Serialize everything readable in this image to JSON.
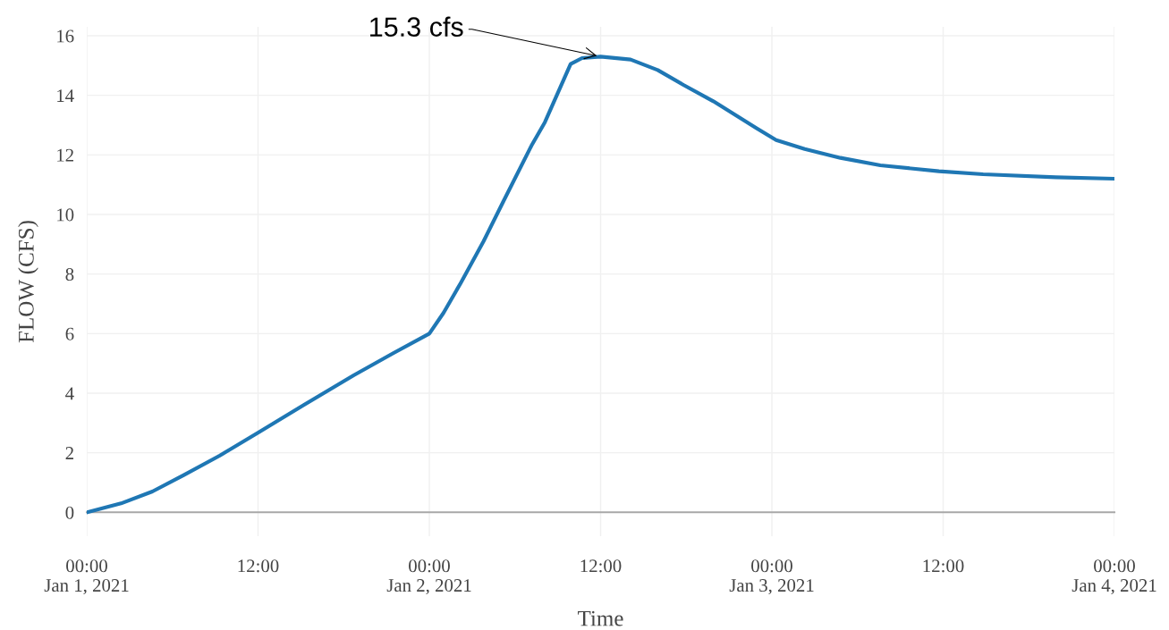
{
  "chart_data": {
    "type": "line",
    "xlabel": "Time",
    "ylabel": "FLOW (CFS)",
    "x": [
      "2021-01-01T00:00",
      "2021-01-01T02:24",
      "2021-01-01T04:36",
      "2021-01-01T06:48",
      "2021-01-01T09:18",
      "2021-01-01T12:06",
      "2021-01-01T15:12",
      "2021-01-01T18:42",
      "2021-01-01T21:30",
      "2021-01-02T00:00",
      "2021-01-02T01:00",
      "2021-01-02T02:12",
      "2021-01-02T03:48",
      "2021-01-02T05:12",
      "2021-01-02T07:12",
      "2021-01-02T08:06",
      "2021-01-02T09:54",
      "2021-01-02T10:42",
      "2021-01-02T12:00",
      "2021-01-02T14:06",
      "2021-01-02T16:00",
      "2021-01-02T17:48",
      "2021-01-02T19:54",
      "2021-01-02T22:54",
      "2021-01-03T00:18",
      "2021-01-03T02:18",
      "2021-01-03T04:48",
      "2021-01-03T07:36",
      "2021-01-03T11:42",
      "2021-01-03T14:48",
      "2021-01-03T19:54",
      "2021-01-04T00:00"
    ],
    "series": [
      {
        "color": "#1f77b4",
        "values": [
          0,
          0.3,
          0.7,
          1.25,
          1.9,
          2.7,
          3.6,
          4.6,
          5.35,
          6.0,
          6.7,
          7.7,
          9.1,
          10.45,
          12.35,
          13.1,
          15.05,
          15.25,
          15.3,
          15.2,
          14.85,
          14.35,
          13.8,
          12.9,
          12.5,
          12.2,
          11.9,
          11.65,
          11.45,
          11.35,
          11.25,
          11.2
        ]
      }
    ],
    "xlim": [
      "2021-01-01T00:00",
      "2021-01-04T00:00"
    ],
    "xticks": [
      {
        "value": "2021-01-01T00:00",
        "label": "00:00\nJan 1, 2021"
      },
      {
        "value": "2021-01-01T12:00",
        "label": "12:00"
      },
      {
        "value": "2021-01-02T00:00",
        "label": "00:00\nJan 2, 2021"
      },
      {
        "value": "2021-01-02T12:00",
        "label": "12:00"
      },
      {
        "value": "2021-01-03T00:00",
        "label": "00:00\nJan 3, 2021"
      },
      {
        "value": "2021-01-03T12:00",
        "label": "12:00"
      },
      {
        "value": "2021-01-04T00:00",
        "label": "00:00\nJan 4, 2021"
      }
    ],
    "ylim": [
      -0.8,
      16.3
    ],
    "yticks": [
      0,
      2,
      4,
      6,
      8,
      10,
      12,
      14,
      16
    ],
    "grid": true,
    "legend": false,
    "annotations": [
      {
        "text": "15.3 cfs",
        "x": "2021-01-02T12:00",
        "y": 15.3
      }
    ]
  }
}
